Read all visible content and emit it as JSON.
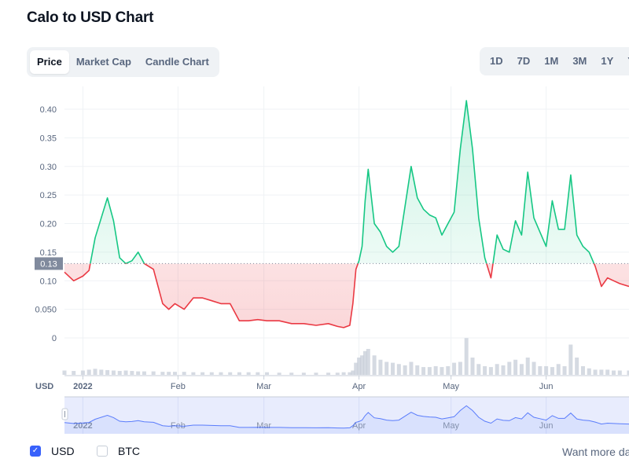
{
  "page": {
    "title": "Calo to USD Chart"
  },
  "tabs": [
    {
      "label": "Price",
      "active": true
    },
    {
      "label": "Market Cap",
      "active": false
    },
    {
      "label": "Candle Chart",
      "active": false
    }
  ],
  "ranges": [
    "1D",
    "7D",
    "1M",
    "3M",
    "1Y",
    "YTD"
  ],
  "legend": {
    "usd": {
      "label": "USD",
      "checked": true
    },
    "btc": {
      "label": "BTC",
      "checked": false
    }
  },
  "footer_text": "Want more data?",
  "colors": {
    "up": "#16c784",
    "down": "#ea3943",
    "navigator": "#3861fb"
  },
  "chart_data": {
    "type": "line",
    "title": "Calo to USD Chart",
    "ylabel": "USD",
    "reference_value": 0.13,
    "reference_label": "0.13",
    "y_ticks": [
      {
        "value": 0.4,
        "label": "0.40"
      },
      {
        "value": 0.35,
        "label": "0.35"
      },
      {
        "value": 0.3,
        "label": "0.30"
      },
      {
        "value": 0.25,
        "label": "0.25"
      },
      {
        "value": 0.2,
        "label": "0.20"
      },
      {
        "value": 0.15,
        "label": "0.15"
      },
      {
        "value": 0.1,
        "label": "0.10"
      },
      {
        "value": 0.05,
        "label": "0.050"
      },
      {
        "value": 0.0,
        "label": "0"
      }
    ],
    "ylim": [
      0,
      0.43
    ],
    "x_ticks": [
      {
        "date": "2022-01-01",
        "label": "2022"
      },
      {
        "date": "2022-02-01",
        "label": "Feb"
      },
      {
        "date": "2022-03-01",
        "label": "Mar"
      },
      {
        "date": "2022-04-01",
        "label": "Apr"
      },
      {
        "date": "2022-05-01",
        "label": "May"
      },
      {
        "date": "2022-06-01",
        "label": "Jun"
      }
    ],
    "xlim": [
      "2021-12-26",
      "2022-06-28"
    ],
    "grid": true,
    "series": [
      {
        "x": [
          "2021-12-26",
          "2021-12-29",
          "2022-01-01",
          "2022-01-03",
          "2022-01-05",
          "2022-01-07",
          "2022-01-09",
          "2022-01-11",
          "2022-01-13",
          "2022-01-15",
          "2022-01-17",
          "2022-01-19",
          "2022-01-21",
          "2022-01-24",
          "2022-01-27",
          "2022-01-29",
          "2022-01-31",
          "2022-02-03",
          "2022-02-06",
          "2022-02-09",
          "2022-02-12",
          "2022-02-15",
          "2022-02-18",
          "2022-02-21",
          "2022-02-24",
          "2022-02-27",
          "2022-03-02",
          "2022-03-06",
          "2022-03-10",
          "2022-03-14",
          "2022-03-18",
          "2022-03-22",
          "2022-03-25",
          "2022-03-27",
          "2022-03-29",
          "2022-03-30",
          "2022-03-31",
          "2022-04-01",
          "2022-04-02",
          "2022-04-03",
          "2022-04-04",
          "2022-04-06",
          "2022-04-08",
          "2022-04-10",
          "2022-04-12",
          "2022-04-14",
          "2022-04-16",
          "2022-04-18",
          "2022-04-20",
          "2022-04-22",
          "2022-04-24",
          "2022-04-26",
          "2022-04-28",
          "2022-04-30",
          "2022-05-02",
          "2022-05-04",
          "2022-05-06",
          "2022-05-08",
          "2022-05-10",
          "2022-05-12",
          "2022-05-14",
          "2022-05-16",
          "2022-05-18",
          "2022-05-20",
          "2022-05-22",
          "2022-05-24",
          "2022-05-26",
          "2022-05-28",
          "2022-05-30",
          "2022-06-01",
          "2022-06-03",
          "2022-06-05",
          "2022-06-07",
          "2022-06-09",
          "2022-06-11",
          "2022-06-13",
          "2022-06-15",
          "2022-06-17",
          "2022-06-19",
          "2022-06-21",
          "2022-06-23",
          "2022-06-25",
          "2022-06-28"
        ],
        "y": [
          0.115,
          0.1,
          0.108,
          0.118,
          0.175,
          0.21,
          0.245,
          0.205,
          0.14,
          0.13,
          0.135,
          0.15,
          0.13,
          0.12,
          0.06,
          0.05,
          0.06,
          0.05,
          0.07,
          0.07,
          0.065,
          0.06,
          0.06,
          0.03,
          0.03,
          0.032,
          0.03,
          0.03,
          0.025,
          0.025,
          0.022,
          0.025,
          0.02,
          0.018,
          0.022,
          0.06,
          0.12,
          0.135,
          0.16,
          0.24,
          0.295,
          0.2,
          0.185,
          0.16,
          0.15,
          0.16,
          0.23,
          0.3,
          0.245,
          0.225,
          0.215,
          0.21,
          0.18,
          0.2,
          0.22,
          0.33,
          0.415,
          0.33,
          0.21,
          0.14,
          0.105,
          0.18,
          0.155,
          0.15,
          0.205,
          0.18,
          0.29,
          0.21,
          0.185,
          0.16,
          0.24,
          0.19,
          0.19,
          0.285,
          0.18,
          0.16,
          0.15,
          0.125,
          0.09,
          0.105,
          0.1,
          0.095,
          0.09
        ]
      }
    ],
    "volume_scale": "relative",
    "volume": [
      0.1,
      0.09,
      0.1,
      0.12,
      0.14,
      0.12,
      0.11,
      0.1,
      0.09,
      0.1,
      0.09,
      0.08,
      0.08,
      0.08,
      0.07,
      0.07,
      0.07,
      0.07,
      0.06,
      0.06,
      0.06,
      0.06,
      0.06,
      0.06,
      0.06,
      0.06,
      0.06,
      0.05,
      0.05,
      0.05,
      0.05,
      0.05,
      0.05,
      0.06,
      0.06,
      0.1,
      0.28,
      0.4,
      0.45,
      0.55,
      0.6,
      0.45,
      0.35,
      0.3,
      0.28,
      0.25,
      0.22,
      0.3,
      0.22,
      0.18,
      0.18,
      0.2,
      0.18,
      0.2,
      0.28,
      0.3,
      0.85,
      0.4,
      0.25,
      0.2,
      0.18,
      0.25,
      0.22,
      0.3,
      0.35,
      0.25,
      0.4,
      0.3,
      0.2,
      0.2,
      0.18,
      0.25,
      0.2,
      0.7,
      0.4,
      0.2,
      0.15,
      0.12,
      0.12,
      0.12,
      0.1,
      0.1,
      0.1
    ]
  }
}
